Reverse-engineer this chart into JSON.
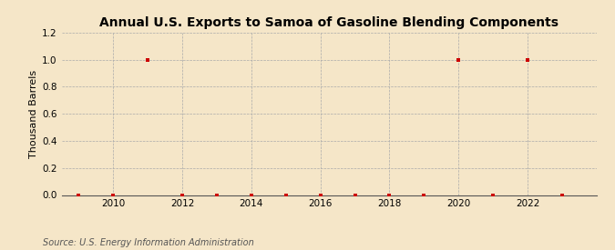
{
  "title": "Annual U.S. Exports to Samoa of Gasoline Blending Components",
  "ylabel": "Thousand Barrels",
  "source": "Source: U.S. Energy Information Administration",
  "background_color": "#f5e6c8",
  "plot_background_color": "#f5e6c8",
  "years": [
    2009,
    2010,
    2011,
    2012,
    2013,
    2014,
    2015,
    2016,
    2017,
    2018,
    2019,
    2020,
    2021,
    2022,
    2023
  ],
  "values": [
    0,
    0,
    1,
    0,
    0,
    0,
    0,
    0,
    0,
    0,
    0,
    1,
    0,
    1,
    0
  ],
  "marker_color": "#cc0000",
  "marker_size": 3.5,
  "ylim": [
    0,
    1.2
  ],
  "yticks": [
    0.0,
    0.2,
    0.4,
    0.6,
    0.8,
    1.0,
    1.2
  ],
  "xtick_positions": [
    2010,
    2012,
    2014,
    2016,
    2018,
    2020,
    2022
  ],
  "grid_color": "#aaaaaa",
  "grid_linestyle": "--",
  "title_fontsize": 10,
  "ylabel_fontsize": 8,
  "tick_fontsize": 7.5,
  "source_fontsize": 7
}
